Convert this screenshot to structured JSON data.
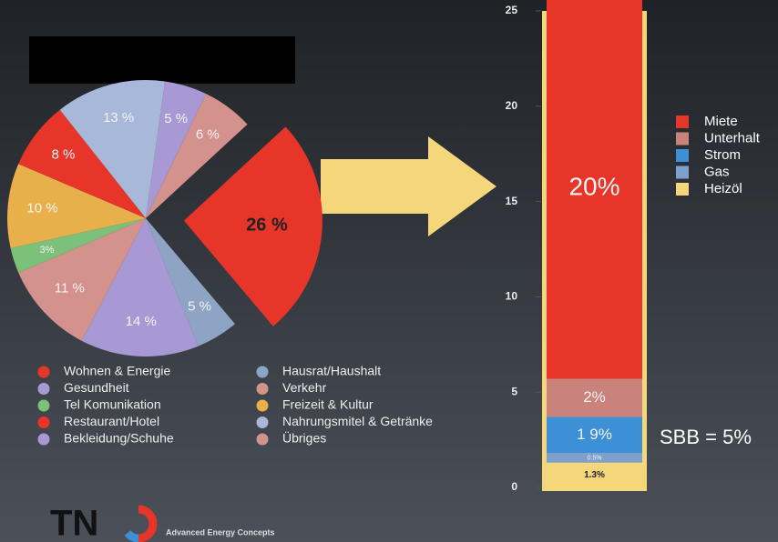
{
  "chart_data": [
    {
      "type": "pie",
      "categories": [
        "Gesundheit",
        "Übriges",
        "Wohnen & Energie",
        "Hausrat/Haushalt",
        "Bekleidung/Schuhe",
        "Verkehr",
        "Tel Komunikation",
        "Freizeit & Kultur",
        "Restaurant/Hotel",
        "Nahrungsmitel & Getränke"
      ],
      "values": [
        5,
        6,
        26,
        5,
        14,
        11,
        3,
        10,
        8,
        13
      ],
      "value_labels": [
        "5 %",
        "6 %",
        "26 %",
        "5 %",
        "14 %",
        "11 %",
        "3%",
        "10 %",
        "8 %",
        "13 %"
      ],
      "colors": [
        "#a898d4",
        "#d4928c",
        "#e8352a",
        "#8ea4c4",
        "#a898d4",
        "#d4928c",
        "#7cc07a",
        "#e8b04a",
        "#e8352a",
        "#a8b8d8"
      ],
      "legend": true
    },
    {
      "type": "stacked_bar",
      "series": [
        {
          "name": "Heizöl",
          "color": "#f3d77a",
          "values": [
            1.3
          ],
          "value_labels": [
            "1.3%"
          ]
        },
        {
          "name": "Gas",
          "color": "#7fa0cc",
          "values": [
            0.5
          ],
          "value_labels": [
            "0.5%"
          ]
        },
        {
          "name": "Strom",
          "color": "#3d8fd6",
          "values": [
            1.9
          ],
          "value_labels": [
            "1 9%"
          ]
        },
        {
          "name": "Unterhalt",
          "color": "#c9827c",
          "values": [
            2
          ],
          "value_labels": [
            "2%"
          ]
        },
        {
          "name": "Miete",
          "color": "#e8352a",
          "values": [
            20
          ],
          "value_labels": [
            "20%"
          ]
        }
      ],
      "ylim": [
        0,
        25
      ],
      "yticks": [
        0,
        5,
        10,
        15,
        20,
        25
      ],
      "annotation": "SBB = 5%",
      "legend": true
    }
  ],
  "footer": {
    "brand": "TN",
    "tagline": "Advanced Energy Concepts"
  }
}
